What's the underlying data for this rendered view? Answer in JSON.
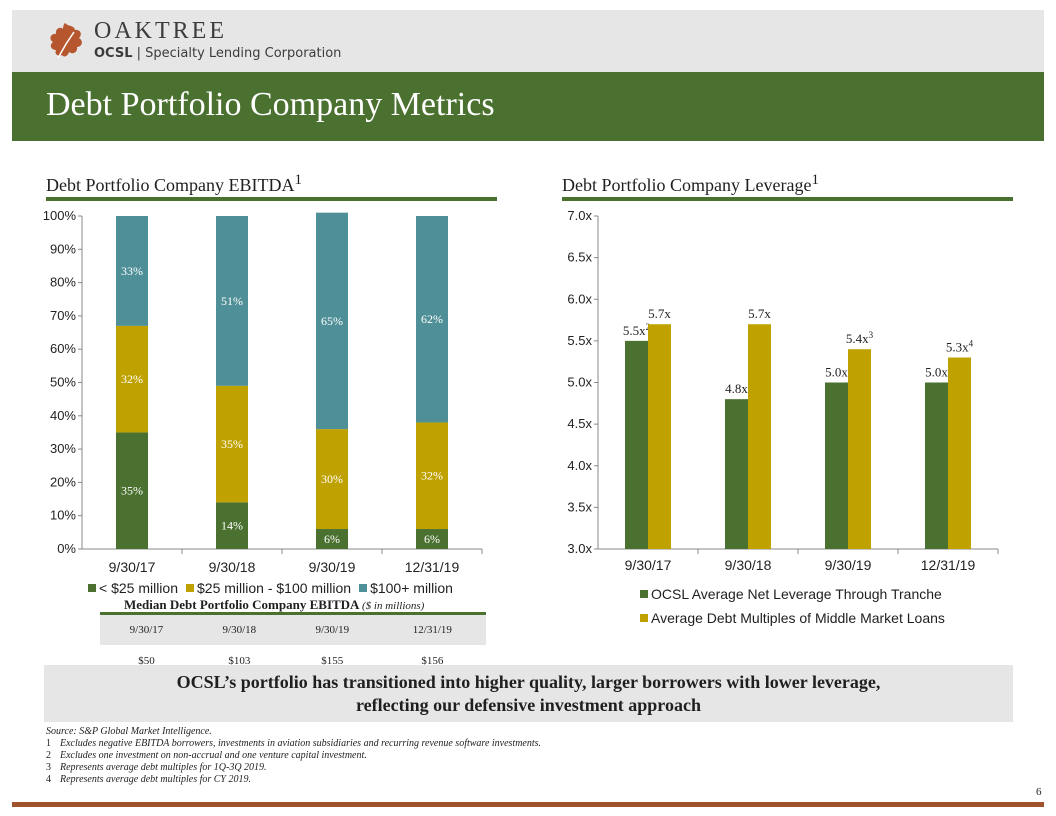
{
  "header": {
    "brand": "OAKTREE",
    "sub_bold": "OCSL",
    "sub_rest": " | Specialty Lending Corporation",
    "title": "Debt Portfolio Company Metrics"
  },
  "colors": {
    "green": "#4b7130",
    "gold": "#bfa200",
    "teal": "#4f8f97",
    "leaf": "#b5562f",
    "rust": "#a0522d"
  },
  "left_section": {
    "title": "Debt Portfolio Company EBITDA",
    "sup": "1"
  },
  "right_section": {
    "title": "Debt Portfolio Company Leverage",
    "sup": "1"
  },
  "chart_data": [
    {
      "type": "bar",
      "stacked": true,
      "title": "Debt Portfolio Company EBITDA",
      "categories": [
        "9/30/17",
        "9/30/18",
        "9/30/19",
        "12/31/19"
      ],
      "series": [
        {
          "name": "< $25 million",
          "values": [
            35,
            14,
            6,
            6
          ],
          "labels": [
            "35%",
            "14%",
            "6%",
            "6%"
          ],
          "color": "#4b7130"
        },
        {
          "name": "$25 million - $100 million",
          "values": [
            32,
            35,
            30,
            32
          ],
          "labels": [
            "32%",
            "35%",
            "30%",
            "32%"
          ],
          "color": "#bfa200"
        },
        {
          "name": "$100+ million",
          "values": [
            33,
            51,
            65,
            62
          ],
          "labels": [
            "33%",
            "51%",
            "65%",
            "62%"
          ],
          "color": "#4f8f97"
        }
      ],
      "ylim": [
        0,
        100
      ],
      "yticks": [
        "0%",
        "10%",
        "20%",
        "30%",
        "40%",
        "50%",
        "60%",
        "70%",
        "80%",
        "90%",
        "100%"
      ],
      "legend": "bottom",
      "grid": false
    },
    {
      "type": "bar",
      "stacked": false,
      "title": "Debt Portfolio Company Leverage",
      "categories": [
        "9/30/17",
        "9/30/18",
        "9/30/19",
        "12/31/19"
      ],
      "series": [
        {
          "name": "OCSL Average Net Leverage Through Tranche",
          "values": [
            5.5,
            4.8,
            5.0,
            5.0
          ],
          "labels": [
            "5.5x",
            "4.8x",
            "5.0x",
            "5.0x"
          ],
          "sups": [
            "2",
            "",
            "",
            ""
          ],
          "color": "#4b7130"
        },
        {
          "name": "Average Debt Multiples of Middle Market Loans",
          "values": [
            5.7,
            5.7,
            5.4,
            5.3
          ],
          "labels": [
            "5.7x",
            "5.7x",
            "5.4x",
            "5.3x"
          ],
          "sups": [
            "",
            "",
            "3",
            "4"
          ],
          "color": "#bfa200"
        }
      ],
      "ylim": [
        3.0,
        7.0
      ],
      "yticks": [
        "3.0x",
        "3.5x",
        "4.0x",
        "4.5x",
        "5.0x",
        "5.5x",
        "6.0x",
        "6.5x",
        "7.0x"
      ],
      "legend": "bottom",
      "grid": false
    }
  ],
  "median_table": {
    "title": "Median Debt Portfolio Company EBITDA",
    "title_note": "($ in millions)",
    "headers": [
      "9/30/17",
      "9/30/18",
      "9/30/19",
      "12/31/19"
    ],
    "values": [
      "$50",
      "$103",
      "$155",
      "$156"
    ]
  },
  "callout": {
    "line1": "OCSL’s portfolio has transitioned into higher quality, larger borrowers with lower leverage,",
    "line2": "reflecting our defensive investment approach"
  },
  "footnotes": {
    "source": "Source: S&P Global Market Intelligence.",
    "items": [
      {
        "num": "1",
        "text": "Excludes negative EBITDA borrowers, investments in aviation subsidiaries and recurring revenue software investments."
      },
      {
        "num": "2",
        "text": "Excludes one investment on non-accrual and one venture capital investment."
      },
      {
        "num": "3",
        "text": "Represents average debt multiples for 1Q-3Q 2019."
      },
      {
        "num": "4",
        "text": "Represents average debt multiples for CY 2019."
      }
    ]
  },
  "page_number": "6"
}
